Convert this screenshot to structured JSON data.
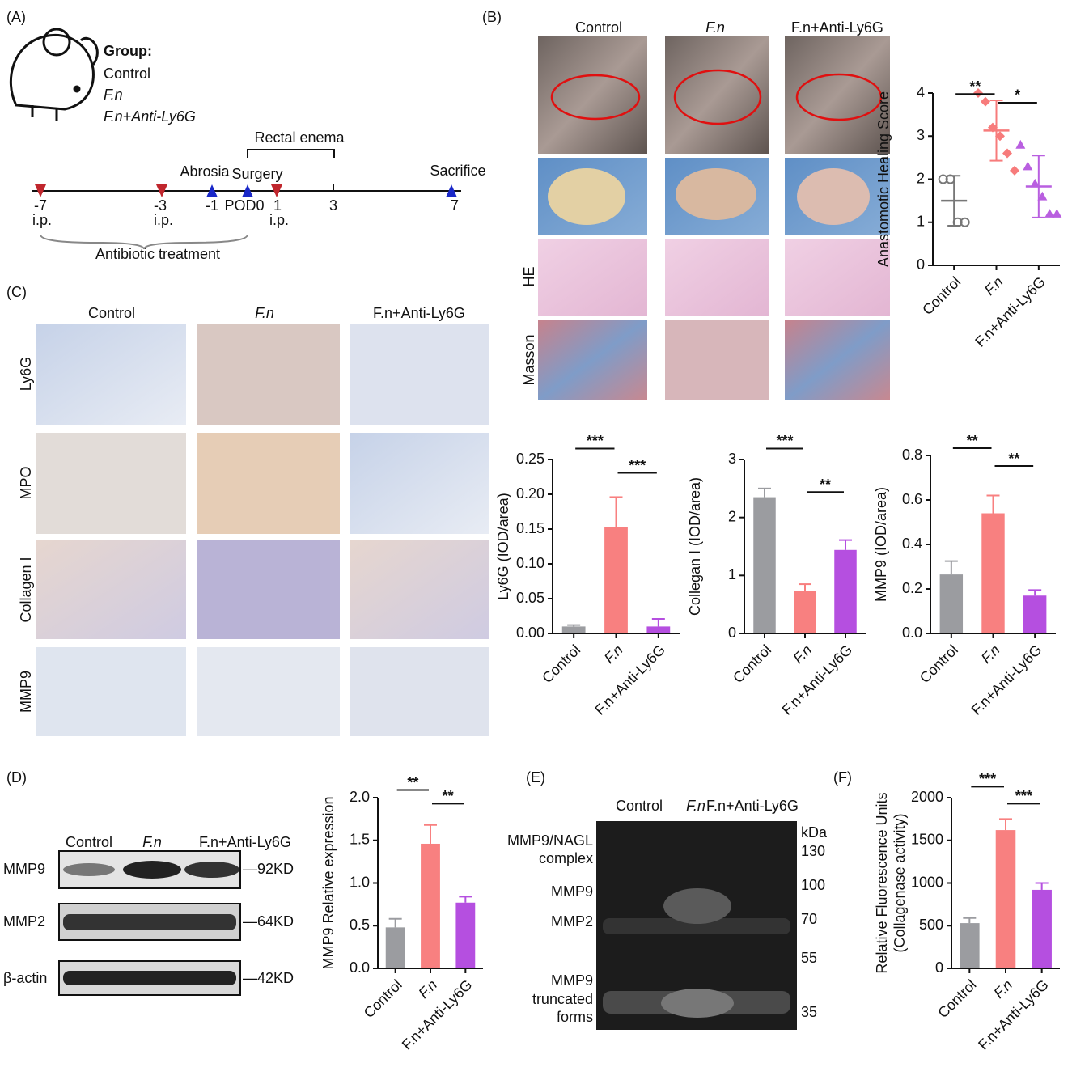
{
  "panel_labels": [
    "(A)",
    "(B)",
    "(C)",
    "(D)",
    "(E)",
    "(F)"
  ],
  "panel_a": {
    "group_title": "Group:",
    "groups": [
      "Control",
      "F.n",
      "F.n+Anti-Ly6G"
    ],
    "timeline_days": [
      "-7",
      "-3",
      "-1",
      "POD0",
      "1",
      "3",
      "7"
    ],
    "ip": [
      "i.p.",
      "i.p.",
      "i.p."
    ],
    "events": [
      "Abrosia",
      "Surgery",
      "Sacrifice"
    ],
    "rectal_enema": "Rectal enema",
    "antibiotic": "Antibiotic treatment"
  },
  "panel_b": {
    "columns": [
      "Control",
      "F.n",
      "F.n+Anti-Ly6G"
    ],
    "rows": [
      "HE",
      "Masson"
    ]
  },
  "panel_c": {
    "columns": [
      "Control",
      "F.n",
      "F.n+Anti-Ly6G"
    ],
    "rows": [
      "Ly6G",
      "MPO",
      "Collagen I",
      "MMP9"
    ]
  },
  "panel_d": {
    "lanes": [
      "Control",
      "F.n",
      "F.n+Anti-Ly6G"
    ],
    "rows": [
      "MMP9",
      "MMP2",
      "β-actin"
    ],
    "sizes": [
      "—92KD",
      "—64KD",
      "—42KD"
    ]
  },
  "panel_e": {
    "lanes": [
      "Control",
      "F.n",
      "F.n+Anti-Ly6G"
    ],
    "bands": [
      "MMP9/NAGL",
      "complex",
      "MMP9",
      "MMP2",
      "MMP9",
      "truncated",
      "forms"
    ],
    "markers": [
      "kDa",
      "130",
      "100",
      "70",
      "55",
      "35"
    ]
  },
  "chart_data": [
    {
      "type": "dot",
      "ylabel": "Anastomotic Healing Score",
      "categories": [
        "Control",
        "F.n",
        "F.n+Anti-Ly6G"
      ],
      "colors": [
        "#777777",
        "#f77b7b",
        "#b95fe0"
      ],
      "points": [
        [
          2,
          2,
          1,
          1
        ],
        [
          4.0,
          3.8,
          3.2,
          3.0,
          2.6,
          2.2
        ],
        [
          2.8,
          2.3,
          1.9,
          1.6,
          1.2,
          1.2
        ]
      ],
      "means": [
        1.5,
        3.13,
        1.83
      ],
      "errors": [
        0.58,
        0.7,
        0.72
      ],
      "ylim": [
        0,
        4
      ],
      "yticks": [
        0,
        1,
        2,
        3,
        4
      ],
      "annotations": [
        "**",
        "*"
      ]
    },
    {
      "type": "bar",
      "ylabel": "Ly6G (IOD/area)",
      "categories": [
        "Control",
        "F.n",
        "F.n+Anti-Ly6G"
      ],
      "colors": [
        "#9b9ca0",
        "#f88080",
        "#b54fe0"
      ],
      "values": [
        0.01,
        0.153,
        0.01
      ],
      "errors": [
        0.002,
        0.043,
        0.011
      ],
      "ylim": [
        0,
        0.25
      ],
      "yticks": [
        {
          "value": 0,
          "label": "0.00"
        },
        0.05,
        {
          "value": 0.1,
          "label": "0.10"
        },
        0.15,
        {
          "value": 0.2,
          "label": "0.20"
        },
        0.25
      ],
      "annotations": [
        "***",
        "***"
      ]
    },
    {
      "type": "bar",
      "ylabel": "Collegan I (IOD/area)",
      "categories": [
        "Control",
        "F.n",
        "F.n+Anti-Ly6G"
      ],
      "colors": [
        "#9b9ca0",
        "#f88080",
        "#b54fe0"
      ],
      "values": [
        2.35,
        0.73,
        1.44
      ],
      "errors": [
        0.15,
        0.12,
        0.17
      ],
      "ylim": [
        0,
        3
      ],
      "yticks": [
        0,
        1,
        2,
        3
      ],
      "annotations": [
        "***",
        "**"
      ]
    },
    {
      "type": "bar",
      "ylabel": "MMP9 (IOD/area)",
      "categories": [
        "Control",
        "F.n",
        "F.n+Anti-Ly6G"
      ],
      "colors": [
        "#9b9ca0",
        "#f88080",
        "#b54fe0"
      ],
      "values": [
        0.265,
        0.54,
        0.17
      ],
      "errors": [
        0.06,
        0.08,
        0.025
      ],
      "ylim": [
        0,
        0.8
      ],
      "yticks": [
        {
          "value": 0,
          "label": "0.0"
        },
        0.2,
        0.4,
        0.6,
        0.8
      ],
      "annotations": [
        "**",
        "**"
      ]
    },
    {
      "type": "bar",
      "ylabel": "MMP9 Relative expression",
      "categories": [
        "Control",
        "F.n",
        "F.n+Anti-Ly6G"
      ],
      "colors": [
        "#9b9ca0",
        "#f88080",
        "#b54fe0"
      ],
      "values": [
        0.48,
        1.46,
        0.77
      ],
      "errors": [
        0.1,
        0.22,
        0.07
      ],
      "ylim": [
        0,
        2
      ],
      "yticks": [
        {
          "value": 0,
          "label": "0.0"
        },
        0.5,
        {
          "value": 1,
          "label": "1.0"
        },
        1.5,
        {
          "value": 2,
          "label": "2.0"
        }
      ],
      "annotations": [
        "**",
        "**"
      ]
    },
    {
      "type": "bar",
      "ylabel": [
        "Relative Fluorescence Units",
        "(Collagenase activity)"
      ],
      "categories": [
        "Control",
        "F.n",
        "F.n+Anti-Ly6G"
      ],
      "colors": [
        "#9b9ca0",
        "#f88080",
        "#b54fe0"
      ],
      "values": [
        530,
        1620,
        920
      ],
      "errors": [
        60,
        130,
        80
      ],
      "ylim": [
        0,
        2000
      ],
      "yticks": [
        0,
        500,
        1000,
        1500,
        2000
      ],
      "annotations": [
        "***",
        "***"
      ]
    }
  ]
}
